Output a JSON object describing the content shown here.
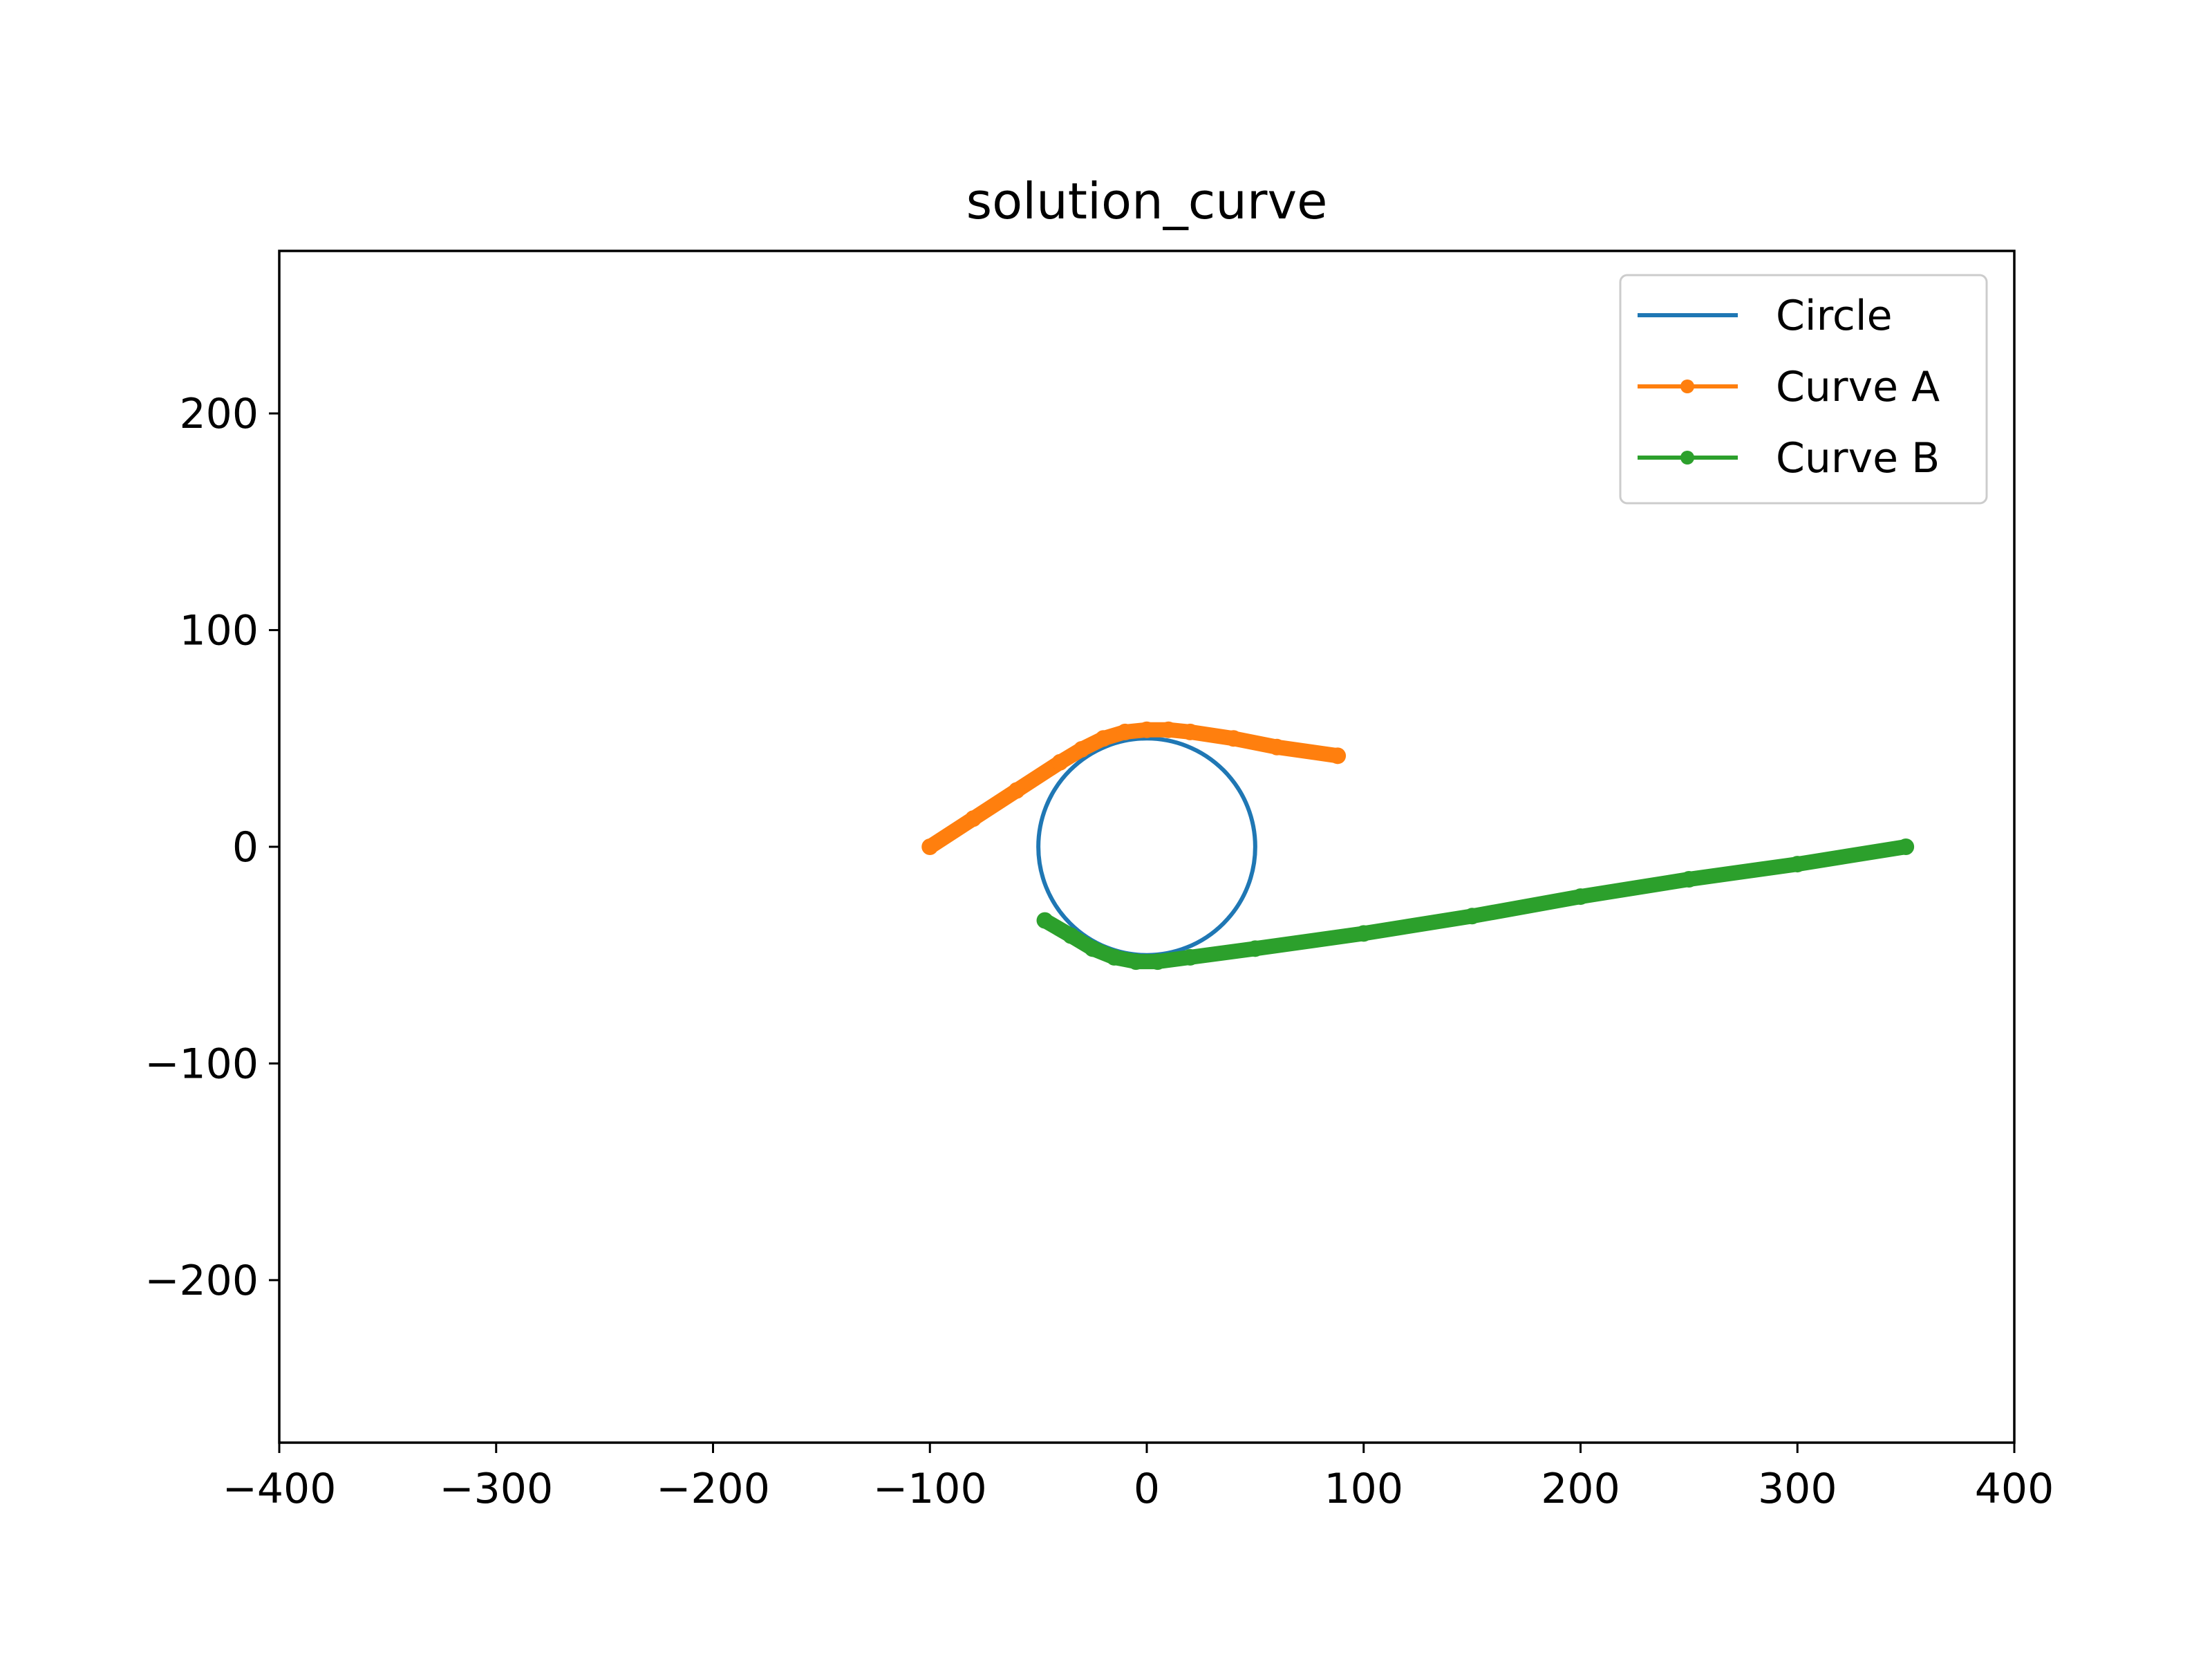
{
  "chart_data": {
    "type": "line",
    "title": "solution_curve",
    "xlabel": "",
    "ylabel": "",
    "xlim": [
      -400,
      400
    ],
    "ylim": [
      -275,
      275
    ],
    "x_ticks": [
      -400,
      -300,
      -200,
      -100,
      0,
      100,
      200,
      300,
      400
    ],
    "x_tick_labels": [
      "−400",
      "−300",
      "−200",
      "−100",
      "0",
      "100",
      "200",
      "300",
      "400"
    ],
    "y_ticks": [
      -200,
      -100,
      0,
      100,
      200
    ],
    "y_tick_labels": [
      "−200",
      "−100",
      "0",
      "100",
      "200"
    ],
    "grid": false,
    "legend_position": "upper right",
    "series": [
      {
        "name": "Circle",
        "style": "line",
        "color": "#1f77b4",
        "center": [
          0,
          0
        ],
        "radius": 50
      },
      {
        "name": "Curve A",
        "style": "line-with-markers",
        "color": "#ff7f0e",
        "points": [
          [
            -100,
            0
          ],
          [
            -80,
            13
          ],
          [
            -60,
            26
          ],
          [
            -40,
            39
          ],
          [
            -30,
            45
          ],
          [
            -20,
            50
          ],
          [
            -10,
            53
          ],
          [
            0,
            54
          ],
          [
            10,
            54
          ],
          [
            20,
            53
          ],
          [
            40,
            50
          ],
          [
            60,
            46
          ],
          [
            88,
            42
          ]
        ]
      },
      {
        "name": "Curve B",
        "style": "line-with-markers",
        "color": "#2ca02c",
        "points": [
          [
            -47,
            -34
          ],
          [
            -35,
            -41
          ],
          [
            -25,
            -47
          ],
          [
            -15,
            -51
          ],
          [
            -5,
            -53
          ],
          [
            5,
            -53
          ],
          [
            20,
            -51
          ],
          [
            50,
            -47
          ],
          [
            100,
            -40
          ],
          [
            150,
            -32
          ],
          [
            200,
            -23
          ],
          [
            250,
            -15
          ],
          [
            300,
            -8
          ],
          [
            350,
            0
          ]
        ]
      }
    ]
  }
}
